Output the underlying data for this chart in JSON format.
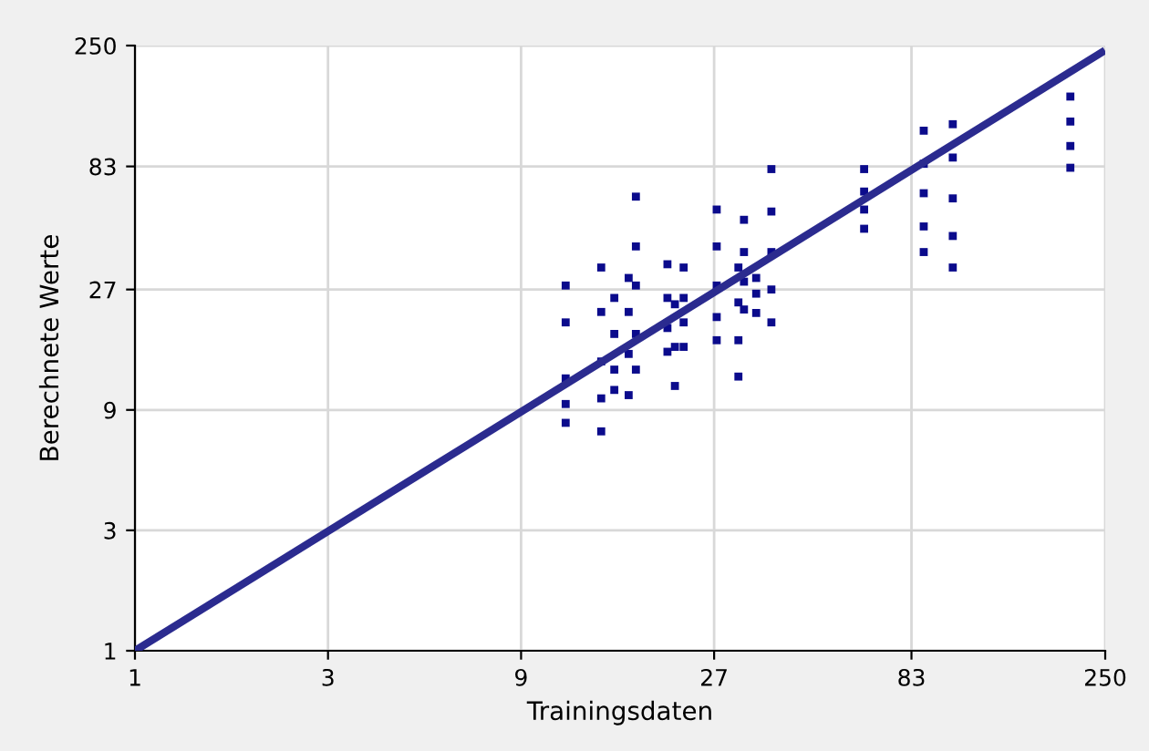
{
  "chart_data": {
    "type": "scatter",
    "xlabel": "Trainingsdaten",
    "ylabel": "Berechnete Werte",
    "log": "xy",
    "xlim": [
      1,
      250
    ],
    "ylim": [
      1,
      250
    ],
    "xticks": [
      1,
      3,
      9,
      27,
      83,
      250
    ],
    "yticks": [
      1,
      3,
      9,
      27,
      83,
      250
    ],
    "grid": true,
    "marker": "square",
    "series": [
      {
        "color": "#0b0b8c",
        "x": [
          11.6,
          11.6,
          11.6,
          11.6,
          11.6,
          14.2,
          14.2,
          14.2,
          14.2,
          14.2,
          15.3,
          15.3,
          15.3,
          15.3,
          16.6,
          16.6,
          16.6,
          16.6,
          17.3,
          17.3,
          17.3,
          17.3,
          17.3,
          20.7,
          20.7,
          20.7,
          20.7,
          21.6,
          21.6,
          21.6,
          22.7,
          22.7,
          22.7,
          22.7,
          27.4,
          27.4,
          27.4,
          27.4,
          27.4,
          31,
          31,
          31,
          31,
          32,
          32,
          32,
          32,
          34.3,
          34.3,
          34.3,
          37.4,
          37.4,
          37.4,
          37.4,
          37.4,
          63.4,
          63.4,
          63.4,
          63.4,
          89,
          89,
          89,
          89,
          89,
          105,
          105,
          105,
          105,
          105,
          205,
          205,
          205,
          205
        ],
        "values": [
          28,
          20,
          12,
          9.5,
          8,
          33,
          22,
          14,
          10,
          7.4,
          25,
          18,
          13,
          10.8,
          30,
          22,
          15,
          10.3,
          63,
          40,
          28,
          18,
          13,
          34,
          25,
          19,
          15.3,
          23.6,
          16,
          11.2,
          33,
          25,
          20,
          16,
          56,
          40,
          28,
          21,
          17,
          33,
          24,
          17,
          12.2,
          51,
          38,
          29,
          22.5,
          30,
          26,
          21.8,
          81,
          55,
          38,
          27,
          20,
          81,
          66,
          56,
          47,
          115,
          85,
          65,
          48,
          38,
          122,
          90,
          62,
          44,
          33,
          157,
          125,
          100,
          82
        ]
      },
      {
        "type": "line",
        "color": "#2b2b8f",
        "x": [
          1,
          245
        ],
        "values": [
          1,
          235
        ],
        "marker": "none"
      }
    ]
  }
}
